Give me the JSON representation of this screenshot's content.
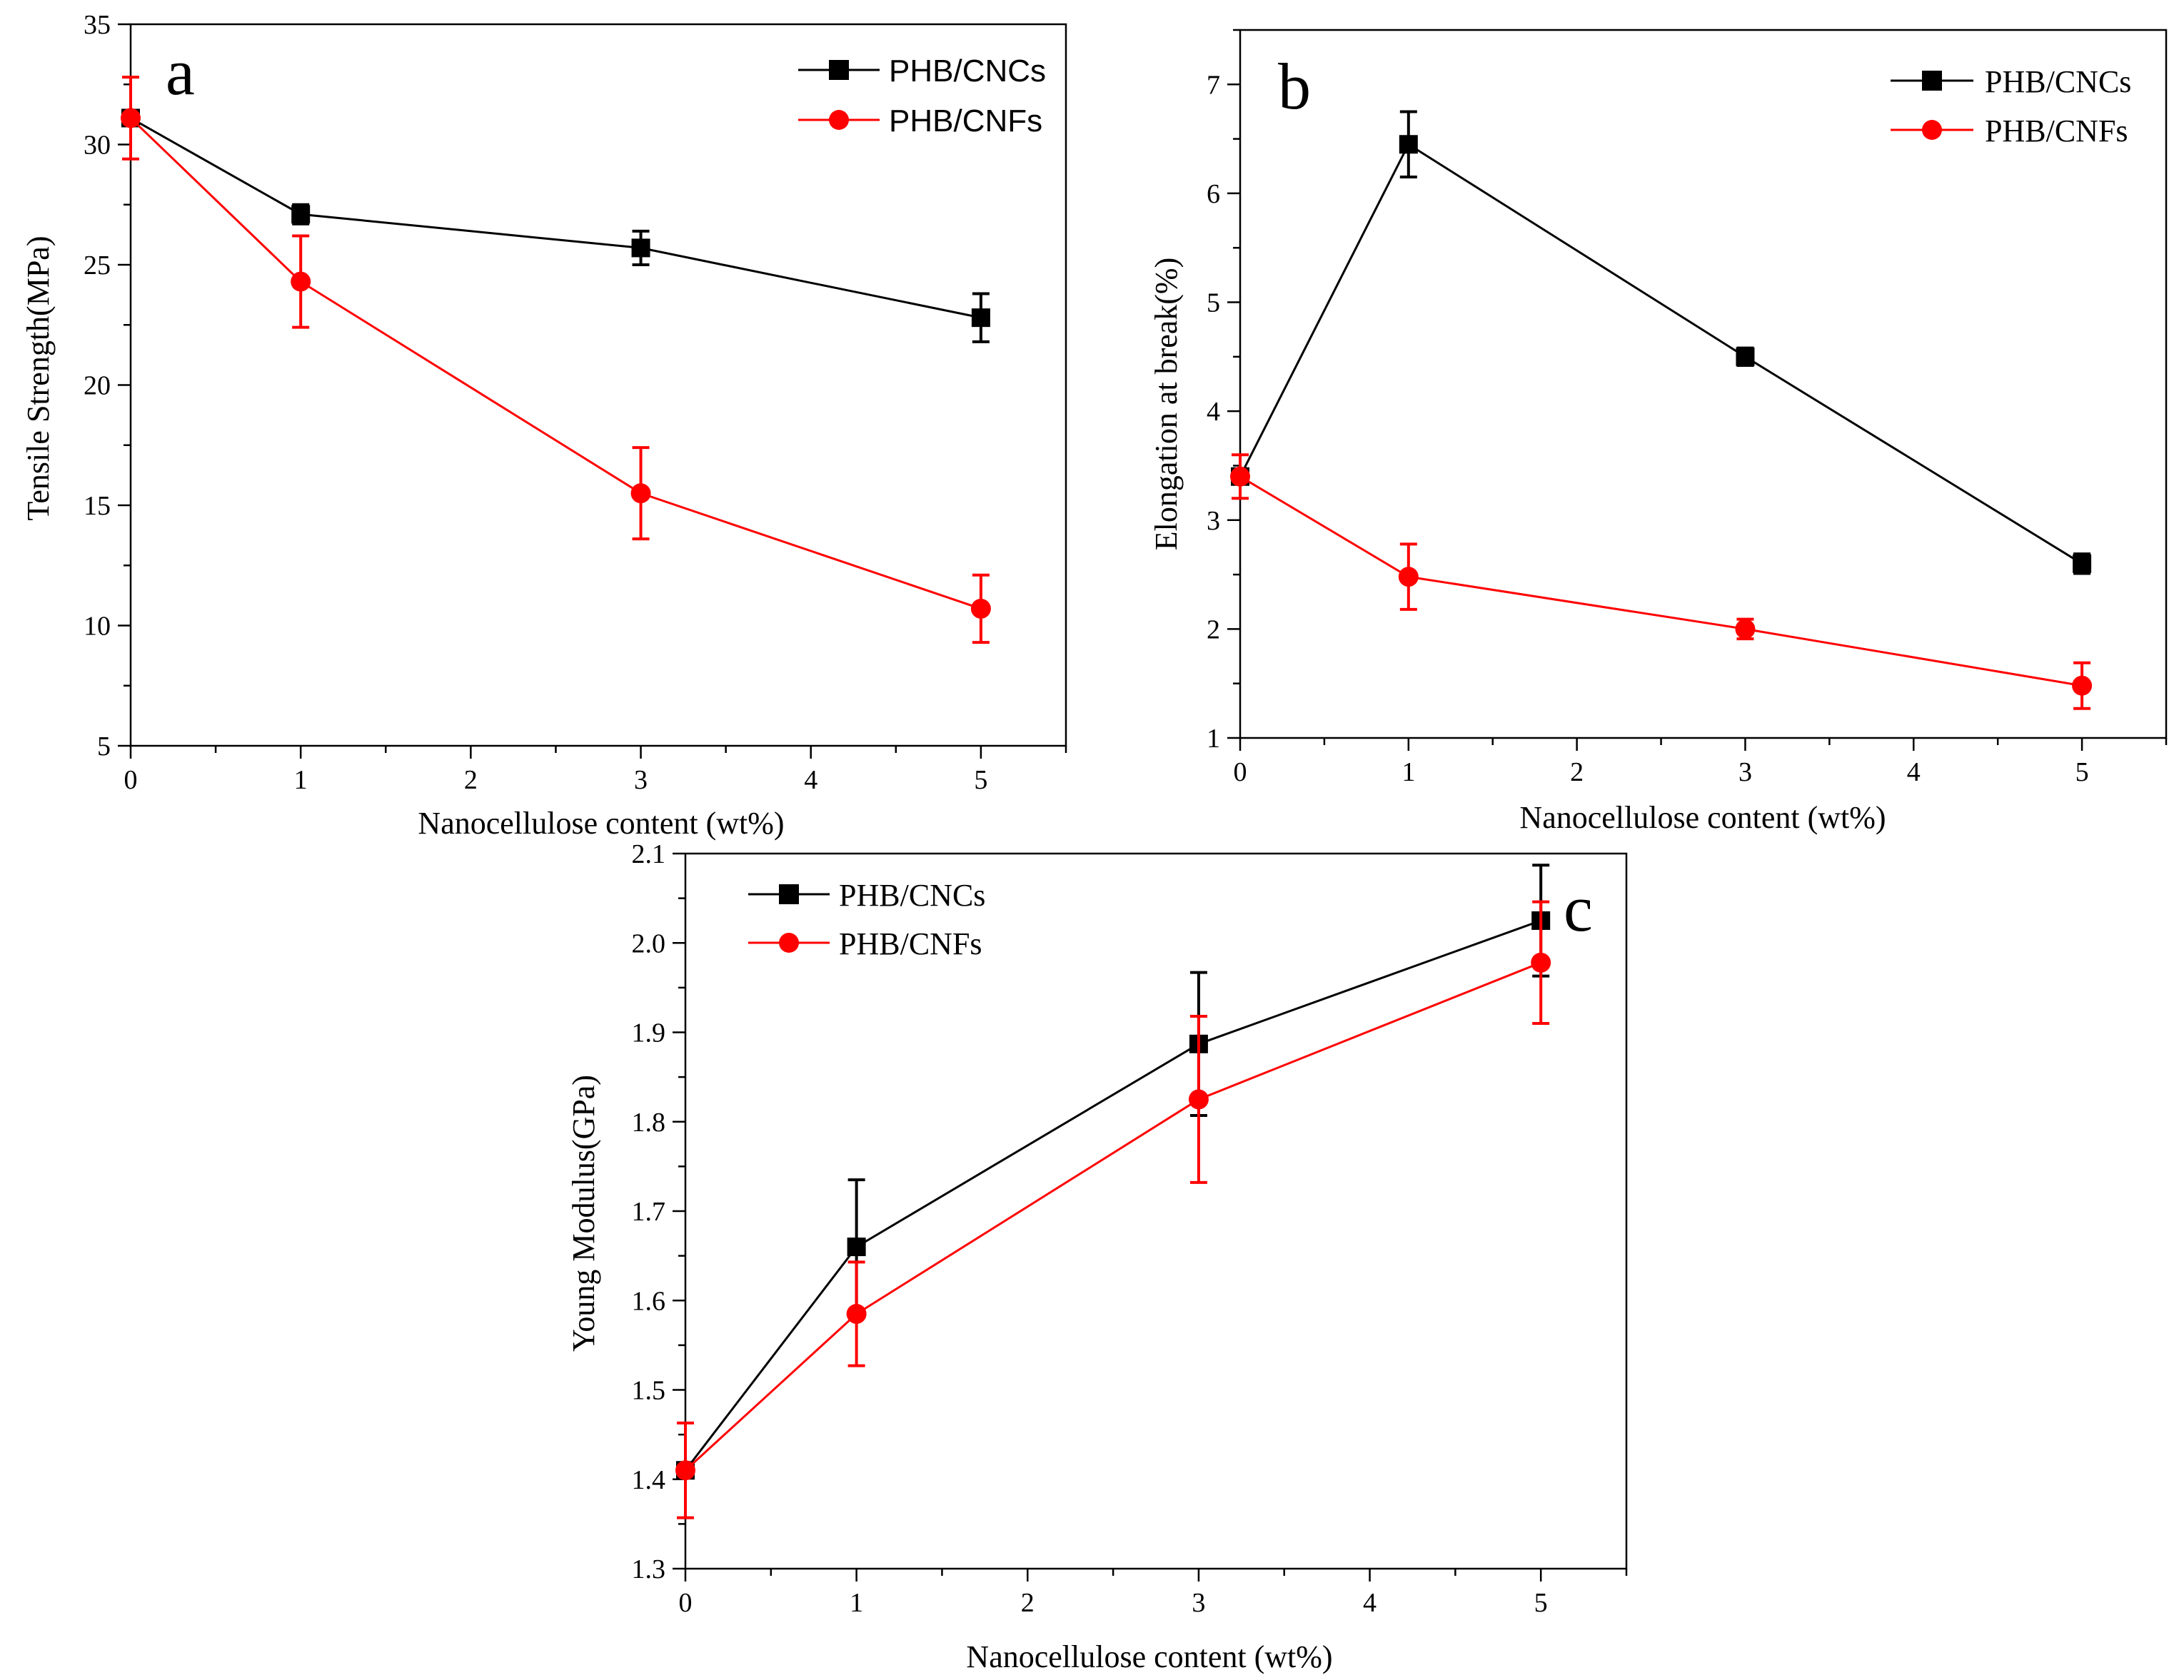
{
  "colors": {
    "cncs": "#000000",
    "cnfs": "#ff0000"
  },
  "chart_data": [
    {
      "type": "line",
      "panel": "a",
      "title": "",
      "xlabel": "Nanocellulose content (wt%)",
      "ylabel": "Tensile Strength(MPa)",
      "xlim": [
        0,
        5.5
      ],
      "ylim": [
        5,
        35
      ],
      "xticks": [
        "0",
        "1",
        "2",
        "3",
        "4",
        "5"
      ],
      "yticks": [
        "5",
        "10",
        "15",
        "20",
        "25",
        "30",
        "35"
      ],
      "x": [
        0,
        1,
        3,
        5
      ],
      "series": [
        {
          "name": "PHB/CNCs",
          "values": [
            31.1,
            27.1,
            25.7,
            22.8
          ],
          "errors": [
            0,
            0.4,
            0.7,
            1.0
          ]
        },
        {
          "name": "PHB/CNFs",
          "values": [
            31.1,
            24.3,
            15.5,
            10.7
          ],
          "errors": [
            1.7,
            1.9,
            1.9,
            1.4
          ]
        }
      ],
      "legend": "top-right"
    },
    {
      "type": "line",
      "panel": "b",
      "title": "",
      "xlabel": "Nanocellulose content (wt%)",
      "ylabel": "Elongation at break(%)",
      "xlim": [
        0,
        5.5
      ],
      "ylim": [
        1,
        7.5
      ],
      "xticks": [
        "0",
        "1",
        "2",
        "3",
        "4",
        "5"
      ],
      "yticks": [
        "1",
        "2",
        "3",
        "4",
        "5",
        "6",
        "7"
      ],
      "x": [
        0,
        1,
        3,
        5
      ],
      "series": [
        {
          "name": "PHB/CNCs",
          "values": [
            3.4,
            6.45,
            4.5,
            2.6
          ],
          "errors": [
            0,
            0.3,
            0.08,
            0.09
          ]
        },
        {
          "name": "PHB/CNFs",
          "values": [
            3.4,
            2.48,
            2.0,
            1.48
          ],
          "errors": [
            0.2,
            0.3,
            0.09,
            0.21
          ]
        }
      ],
      "legend": "top-right"
    },
    {
      "type": "line",
      "panel": "c",
      "title": "",
      "xlabel": "Nanocellulose content (wt%)",
      "ylabel": "Young Modulus(GPa)",
      "xlim": [
        0,
        5.5
      ],
      "ylim": [
        1.3,
        2.1
      ],
      "xticks": [
        "0",
        "1",
        "2",
        "3",
        "4",
        "5"
      ],
      "yticks": [
        "1.3",
        "1.4",
        "1.5",
        "1.6",
        "1.7",
        "1.8",
        "1.9",
        "2.0",
        "2.1"
      ],
      "x": [
        0,
        1,
        3,
        5
      ],
      "series": [
        {
          "name": "PHB/CNCs",
          "values": [
            1.41,
            1.66,
            1.887,
            2.025
          ],
          "errors": [
            0,
            0.075,
            0.08,
            0.062
          ]
        },
        {
          "name": "PHB/CNFs",
          "values": [
            1.41,
            1.585,
            1.825,
            1.978
          ],
          "errors": [
            0.053,
            0.058,
            0.093,
            0.068
          ]
        }
      ],
      "legend": "top-left"
    }
  ]
}
